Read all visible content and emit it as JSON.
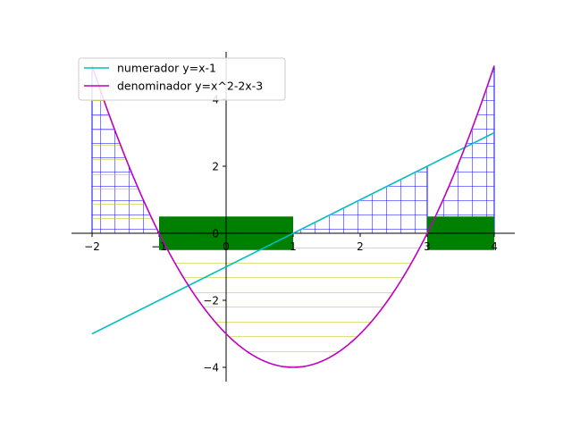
{
  "chart_data": {
    "type": "line",
    "title": "",
    "xlabel": "",
    "ylabel": "",
    "xlim": [
      -2,
      4
    ],
    "ylim": [
      -4.5,
      5.5
    ],
    "x_ticks": [
      -2,
      -1,
      0,
      1,
      2,
      3,
      4
    ],
    "y_ticks": [
      -4,
      -2,
      0,
      2,
      4
    ],
    "x_tick_labels": [
      "−2",
      "−1",
      "0",
      "1",
      "2",
      "3",
      "4"
    ],
    "y_tick_labels": [
      "−4",
      "−2",
      "0",
      "2",
      "4"
    ],
    "grid": false,
    "legend_position": "top-left",
    "series": [
      {
        "name": "numerador y=x-1",
        "color": "#00bfbf",
        "x": [
          -2,
          -1,
          0,
          1,
          2,
          3,
          4
        ],
        "y": [
          -3,
          -2,
          -1,
          0,
          1,
          2,
          3
        ]
      },
      {
        "name": "denominador y=x^2-2x-3",
        "color": "#bf00bf",
        "x": [
          -2,
          -1.5,
          -1,
          -0.5,
          0,
          0.5,
          1,
          1.5,
          2,
          2.5,
          3,
          3.5,
          4
        ],
        "y": [
          5,
          2.25,
          0,
          -1.75,
          -3,
          -3.75,
          -4,
          -3.75,
          -3,
          -1.75,
          0,
          2.25,
          5
        ]
      }
    ],
    "shaded_regions": [
      {
        "kind": "hatched-grid",
        "color": "#0000ff",
        "between": [
          "denominador",
          "axis"
        ],
        "x_range": [
          -2,
          -1
        ]
      },
      {
        "kind": "hatched-grid",
        "color": "#0000ff",
        "between": [
          "numerador",
          "axis"
        ],
        "x_range": [
          1,
          3
        ]
      },
      {
        "kind": "hatched-grid",
        "color": "#0000ff",
        "between": [
          "denominador",
          "axis"
        ],
        "x_range": [
          3,
          4
        ]
      },
      {
        "kind": "hatched-horizontal",
        "color": "#bfbf00",
        "between": [
          "axis",
          "denominador"
        ],
        "x_range": [
          -2,
          3
        ]
      }
    ],
    "rectangles": [
      {
        "color": "#008000",
        "x_range": [
          -1,
          1
        ],
        "y_range": [
          -0.5,
          0.5
        ]
      },
      {
        "color": "#008000",
        "x_range": [
          3,
          4
        ],
        "y_range": [
          -0.5,
          0.5
        ]
      }
    ]
  }
}
